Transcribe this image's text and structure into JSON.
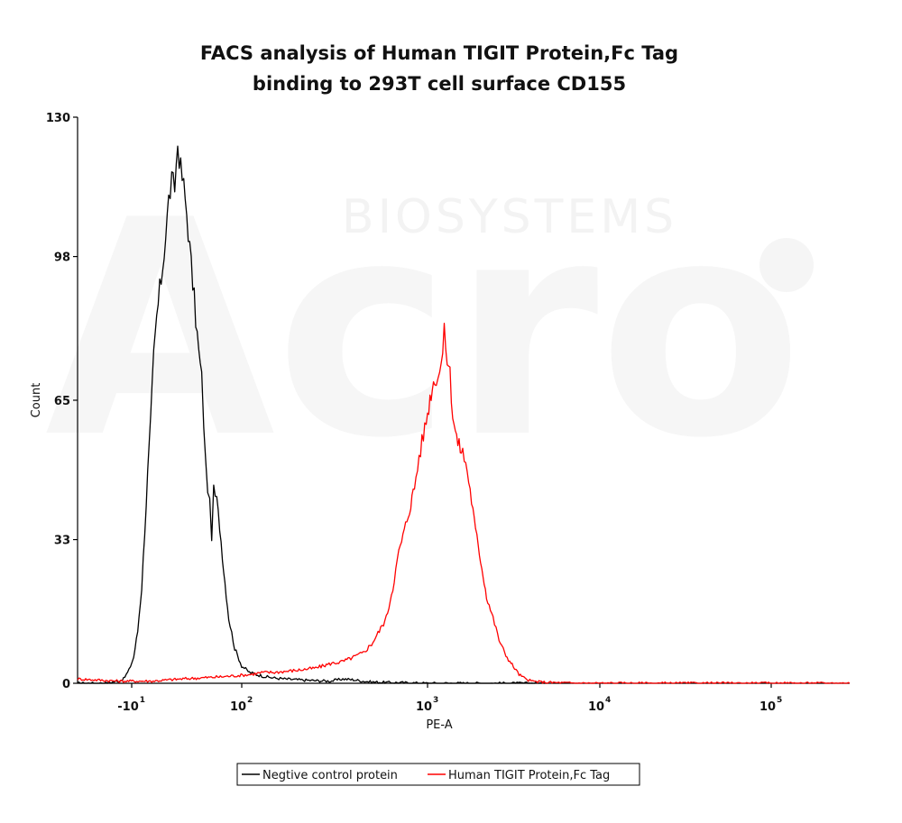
{
  "chart_data": {
    "type": "line",
    "title": [
      "FACS analysis of Human TIGIT Protein,Fc Tag",
      "binding to 293T cell surface CD155"
    ],
    "xlabel": "PE-A",
    "ylabel": "Count",
    "x_scale": "logicle",
    "xlim": [
      -50,
      300000
    ],
    "ylim": [
      0,
      130
    ],
    "y_ticks": [
      {
        "value": 0,
        "label": "0"
      },
      {
        "value": 33,
        "label": "33"
      },
      {
        "value": 65,
        "label": "65"
      },
      {
        "value": 98,
        "label": "98"
      },
      {
        "value": 130,
        "label": "130"
      }
    ],
    "x_ticks": [
      {
        "value": -10,
        "label": "-10",
        "exp": "1"
      },
      {
        "value": 100,
        "label": "10",
        "exp": "2"
      },
      {
        "value": 1000,
        "label": "10",
        "exp": "3"
      },
      {
        "value": 10000,
        "label": "10",
        "exp": "4"
      },
      {
        "value": 100000,
        "label": "10",
        "exp": "5"
      }
    ],
    "grid": false,
    "legend_position": "bottom",
    "watermark": {
      "large": "Acro",
      "small": "BIOSYSTEMS"
    },
    "series": [
      {
        "name": "Negtive control protein",
        "color": "#000000",
        "x": [
          -50,
          -30,
          -20,
          -16,
          -12,
          -8,
          -4,
          0,
          3,
          6,
          9,
          12,
          15,
          18,
          21,
          24,
          27,
          30,
          33,
          36,
          39,
          42,
          45,
          48,
          51,
          54,
          57,
          60,
          62,
          64,
          66,
          68,
          70,
          72,
          75,
          78,
          82,
          87,
          93,
          100,
          110,
          120,
          135,
          150,
          170,
          200,
          250,
          300,
          350,
          400,
          450,
          500,
          600,
          800,
          1000,
          1500,
          2000,
          5000
        ],
        "y": [
          0,
          0,
          0.5,
          1,
          3,
          6,
          12,
          22,
          35,
          48,
          60,
          75,
          84,
          90,
          96,
          103,
          111,
          115,
          114,
          124,
          118,
          114,
          108,
          100,
          92,
          84,
          76,
          70,
          60,
          50,
          45,
          41,
          34,
          44,
          42,
          36,
          26,
          15,
          8,
          4,
          2.5,
          2,
          1.5,
          1.2,
          1,
          0.8,
          0.6,
          0.5,
          1,
          0.8,
          0.5,
          0.3,
          0.2,
          0.1,
          0,
          0,
          0,
          0
        ]
      },
      {
        "name": "Human TIGIT Protein,Fc Tag",
        "color": "#ff0000",
        "x": [
          -50,
          -20,
          -5,
          10,
          40,
          80,
          110,
          130,
          150,
          200,
          250,
          300,
          350,
          400,
          450,
          500,
          550,
          600,
          650,
          700,
          750,
          800,
          850,
          900,
          950,
          1000,
          1050,
          1100,
          1150,
          1200,
          1250,
          1300,
          1350,
          1400,
          1450,
          1500,
          1600,
          1700,
          1800,
          1900,
          2000,
          2100,
          2200,
          2400,
          2600,
          2800,
          3000,
          3200,
          3400,
          3700,
          4000,
          4500,
          5000,
          6000,
          8000,
          10000,
          20000,
          50000,
          100000,
          300000
        ],
        "y": [
          1,
          0.5,
          0.5,
          0.5,
          1,
          1.5,
          2,
          2.5,
          2.5,
          3,
          3.5,
          4.5,
          5,
          6,
          7,
          9,
          12,
          15,
          22,
          30,
          35,
          40,
          45,
          52,
          57,
          62,
          67,
          70,
          71,
          73,
          80,
          75,
          71,
          62,
          58,
          55,
          53,
          49,
          42,
          35,
          30,
          25,
          20,
          15,
          10,
          7,
          5,
          3.5,
          2,
          1,
          0.5,
          0.3,
          0.2,
          0.1,
          0,
          0,
          0,
          0,
          0,
          0
        ]
      }
    ]
  }
}
